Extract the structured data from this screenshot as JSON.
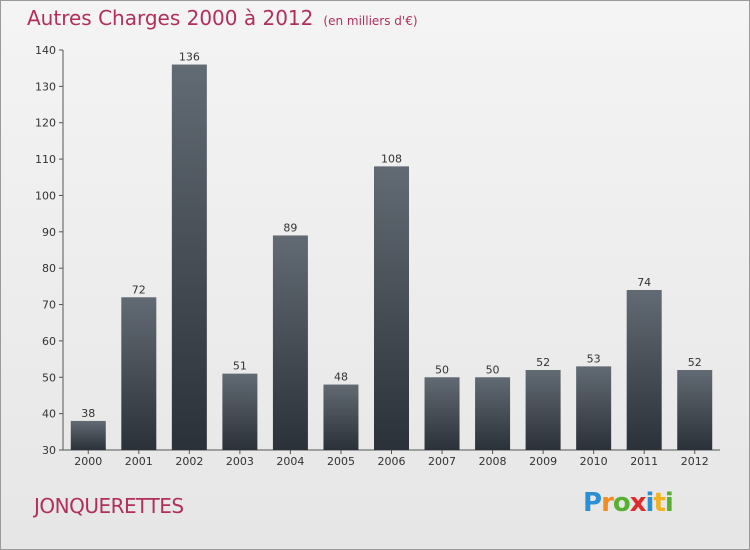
{
  "chart_data": {
    "type": "bar",
    "title": "Autres Charges 2000 à 2012",
    "subtitle": "(en milliers d'€)",
    "categories": [
      "2000",
      "2001",
      "2002",
      "2003",
      "2004",
      "2005",
      "2006",
      "2007",
      "2008",
      "2009",
      "2010",
      "2011",
      "2012"
    ],
    "values": [
      38,
      72,
      136,
      51,
      89,
      48,
      108,
      50,
      50,
      52,
      53,
      74,
      52
    ],
    "ylim": [
      30,
      140
    ],
    "yticks": [
      30,
      40,
      50,
      60,
      70,
      80,
      90,
      100,
      110,
      120,
      130,
      140
    ],
    "grid": false,
    "bar_color": "#3d444c"
  },
  "commune": "JONQUERETTES",
  "logo": {
    "letters": [
      "P",
      "r",
      "o",
      "x",
      "i",
      "t",
      "i"
    ],
    "colors": [
      "#2a8fd4",
      "#f28c1e",
      "#58b030",
      "#e02b2b",
      "#2a8fd4",
      "#f2b11e",
      "#58b030"
    ]
  }
}
